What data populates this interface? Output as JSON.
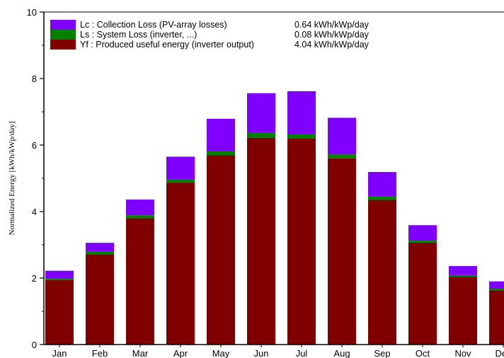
{
  "chart_data": {
    "type": "bar",
    "stacked": true,
    "ylabel": "Normalized Energy [kWh/kWp/day]",
    "xlabel": "",
    "ylim": [
      0,
      10
    ],
    "yticks": [
      "0",
      "2",
      "4",
      "6",
      "8",
      "10"
    ],
    "grid": false,
    "legend_position": "top-left",
    "categories": [
      "Jan",
      "Feb",
      "Mar",
      "Apr",
      "May",
      "Jun",
      "Jul",
      "Aug",
      "Sep",
      "Oct",
      "Nov",
      "Dec"
    ],
    "series": [
      {
        "name": "Yf : Produced useful energy  (inverter output)",
        "summary": "4.04 kWh/kWp/day",
        "color": "#800000",
        "values": [
          1.94,
          2.72,
          3.8,
          4.87,
          5.7,
          6.22,
          6.2,
          5.6,
          4.35,
          3.07,
          2.04,
          1.63
        ]
      },
      {
        "name": "Ls : System Loss  (inverter, ...)",
        "summary": "0.08 kWh/kWp/day",
        "color": "#008000",
        "values": [
          0.05,
          0.07,
          0.09,
          0.1,
          0.12,
          0.15,
          0.13,
          0.12,
          0.1,
          0.07,
          0.05,
          0.05
        ]
      },
      {
        "name": "Lc : Collection Loss (PV-array losses)",
        "summary": "0.64 kWh/kWp/day",
        "color": "#8000ff",
        "values": [
          0.23,
          0.27,
          0.47,
          0.68,
          0.97,
          1.19,
          1.29,
          1.1,
          0.74,
          0.45,
          0.27,
          0.22
        ]
      }
    ]
  }
}
